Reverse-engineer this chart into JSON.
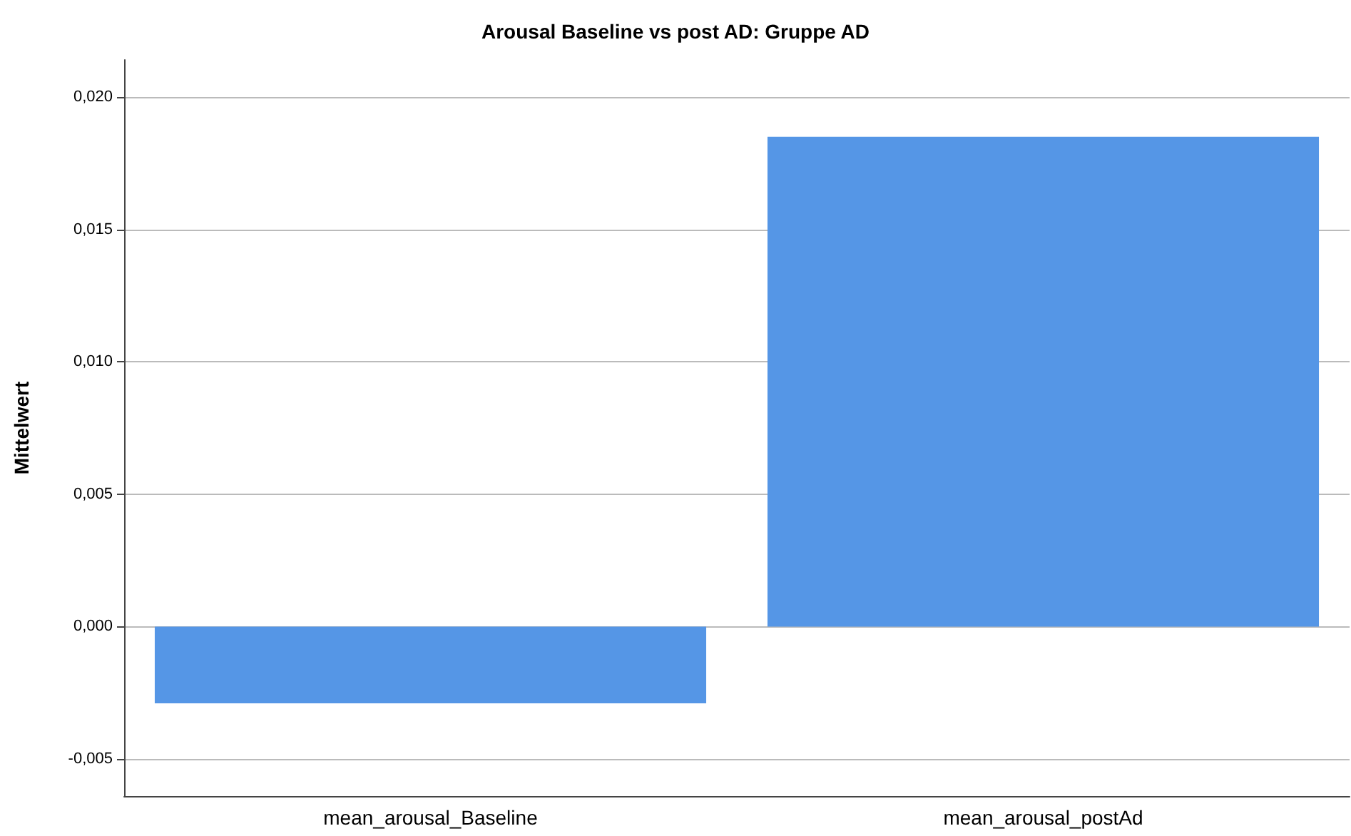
{
  "chart_data": {
    "type": "bar",
    "title": "Arousal Baseline vs post AD: Gruppe AD",
    "ylabel": "Mittelwert",
    "categories": [
      "mean_arousal_Baseline",
      "mean_arousal_postAd"
    ],
    "values": [
      -0.0029,
      0.0185
    ],
    "color": "#5596e6",
    "ylim": [
      -0.0064,
      0.0214
    ],
    "yticks": [
      {
        "value": -0.005,
        "label": "-0,005"
      },
      {
        "value": 0,
        "label": "0,000"
      },
      {
        "value": 0.005,
        "label": "0,005"
      },
      {
        "value": 0.01,
        "label": "0,010"
      },
      {
        "value": 0.015,
        "label": "0,015"
      },
      {
        "value": 0.02,
        "label": "0,020"
      }
    ],
    "grid": "y"
  }
}
